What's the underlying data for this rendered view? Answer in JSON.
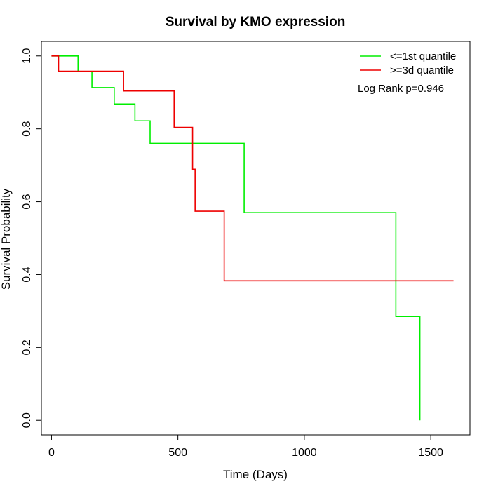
{
  "chart_data": {
    "type": "line",
    "title": "Survival by KMO expression",
    "xlabel": "Time (Days)",
    "ylabel": "Survival Probability",
    "xlim": [
      -40,
      1655
    ],
    "ylim": [
      -0.04,
      1.04
    ],
    "xticks": [
      0,
      500,
      1000,
      1500
    ],
    "yticks": [
      0.0,
      0.2,
      0.4,
      0.6,
      0.8,
      1.0
    ],
    "xtick_labels": [
      "0",
      "500",
      "1000",
      "1500"
    ],
    "ytick_labels": [
      "0.0",
      "0.2",
      "0.4",
      "0.6",
      "0.8",
      "1.0"
    ],
    "grid": false,
    "legend_position": "top-right",
    "annotation": "Log Rank p=0.946",
    "series": [
      {
        "name": "<=1st quantile",
        "color": "#00ee00",
        "step": true,
        "x": [
          0,
          105,
          160,
          248,
          330,
          390,
          762,
          1362,
          1457
        ],
        "y": [
          1.0,
          0.957,
          0.913,
          0.868,
          0.822,
          0.76,
          0.57,
          0.285,
          0.0
        ]
      },
      {
        "name": ">=3d quantile",
        "color": "#ee0000",
        "step": true,
        "x": [
          0,
          28,
          285,
          485,
          558,
          568,
          683,
          1590
        ],
        "y": [
          1.0,
          0.958,
          0.904,
          0.804,
          0.689,
          0.574,
          0.383,
          0.383
        ]
      }
    ]
  }
}
